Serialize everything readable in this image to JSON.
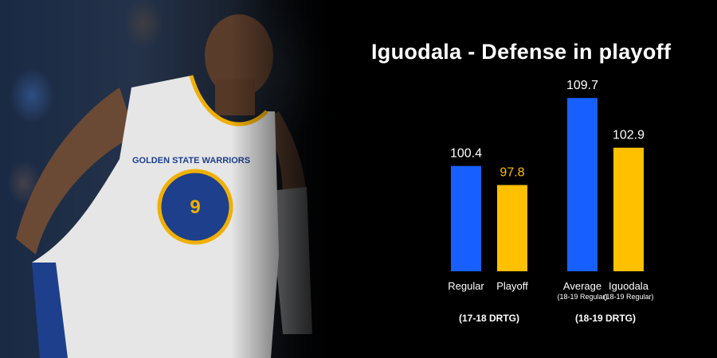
{
  "chart_data": {
    "type": "bar",
    "title": "Iguodala - Defense in playoff",
    "bars": [
      {
        "label": "Regular",
        "sublabel": "",
        "value": 100.4,
        "value_text": "100.4",
        "color": "#1760ff",
        "label_color": "#ffffff",
        "group": 0
      },
      {
        "label": "Playoff",
        "sublabel": "",
        "value": 97.8,
        "value_text": "97.8",
        "color": "#ffc000",
        "label_color": "#ffc000",
        "group": 0
      },
      {
        "label": "Average",
        "sublabel": "(18-19 Regular)",
        "value": 109.7,
        "value_text": "109.7",
        "color": "#1760ff",
        "label_color": "#ffffff",
        "group": 1
      },
      {
        "label": "Iguodala",
        "sublabel": "(18-19 Regular)",
        "value": 102.9,
        "value_text": "102.9",
        "color": "#ffc000",
        "label_color": "#ffffff",
        "group": 1
      }
    ],
    "groups": [
      "(17-18 DRTG)",
      "(18-19 DRTG)"
    ],
    "colors": {
      "blue": "#1760ff",
      "gold": "#ffc000",
      "background": "#000000"
    }
  },
  "photo": {
    "jersey_text": "GOLDEN STATE WARRIORS",
    "jersey_number": "9"
  }
}
